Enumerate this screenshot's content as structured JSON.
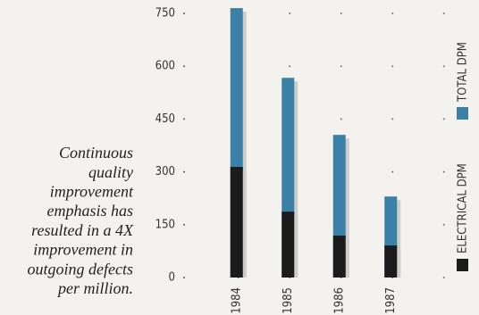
{
  "chart_data": {
    "type": "bar",
    "annotation": [
      "Continuous",
      "quality",
      "improvement",
      "emphasis has",
      "resulted in a 4X",
      "improvement in",
      "outgoing defects",
      "per million."
    ],
    "categories": [
      "1984",
      "1985",
      "1986",
      "1987"
    ],
    "series": [
      {
        "name": "TOTAL DPM",
        "color": "#3b80a6",
        "values": [
          765,
          567,
          405,
          230
        ]
      },
      {
        "name": "ELECTRICAL DPM",
        "color": "#1b1b1b",
        "values": [
          314,
          187,
          119,
          91
        ]
      }
    ],
    "ylim": [
      0,
      750
    ],
    "yticks": [
      0,
      150,
      300,
      450,
      600,
      750
    ],
    "grid": true
  }
}
